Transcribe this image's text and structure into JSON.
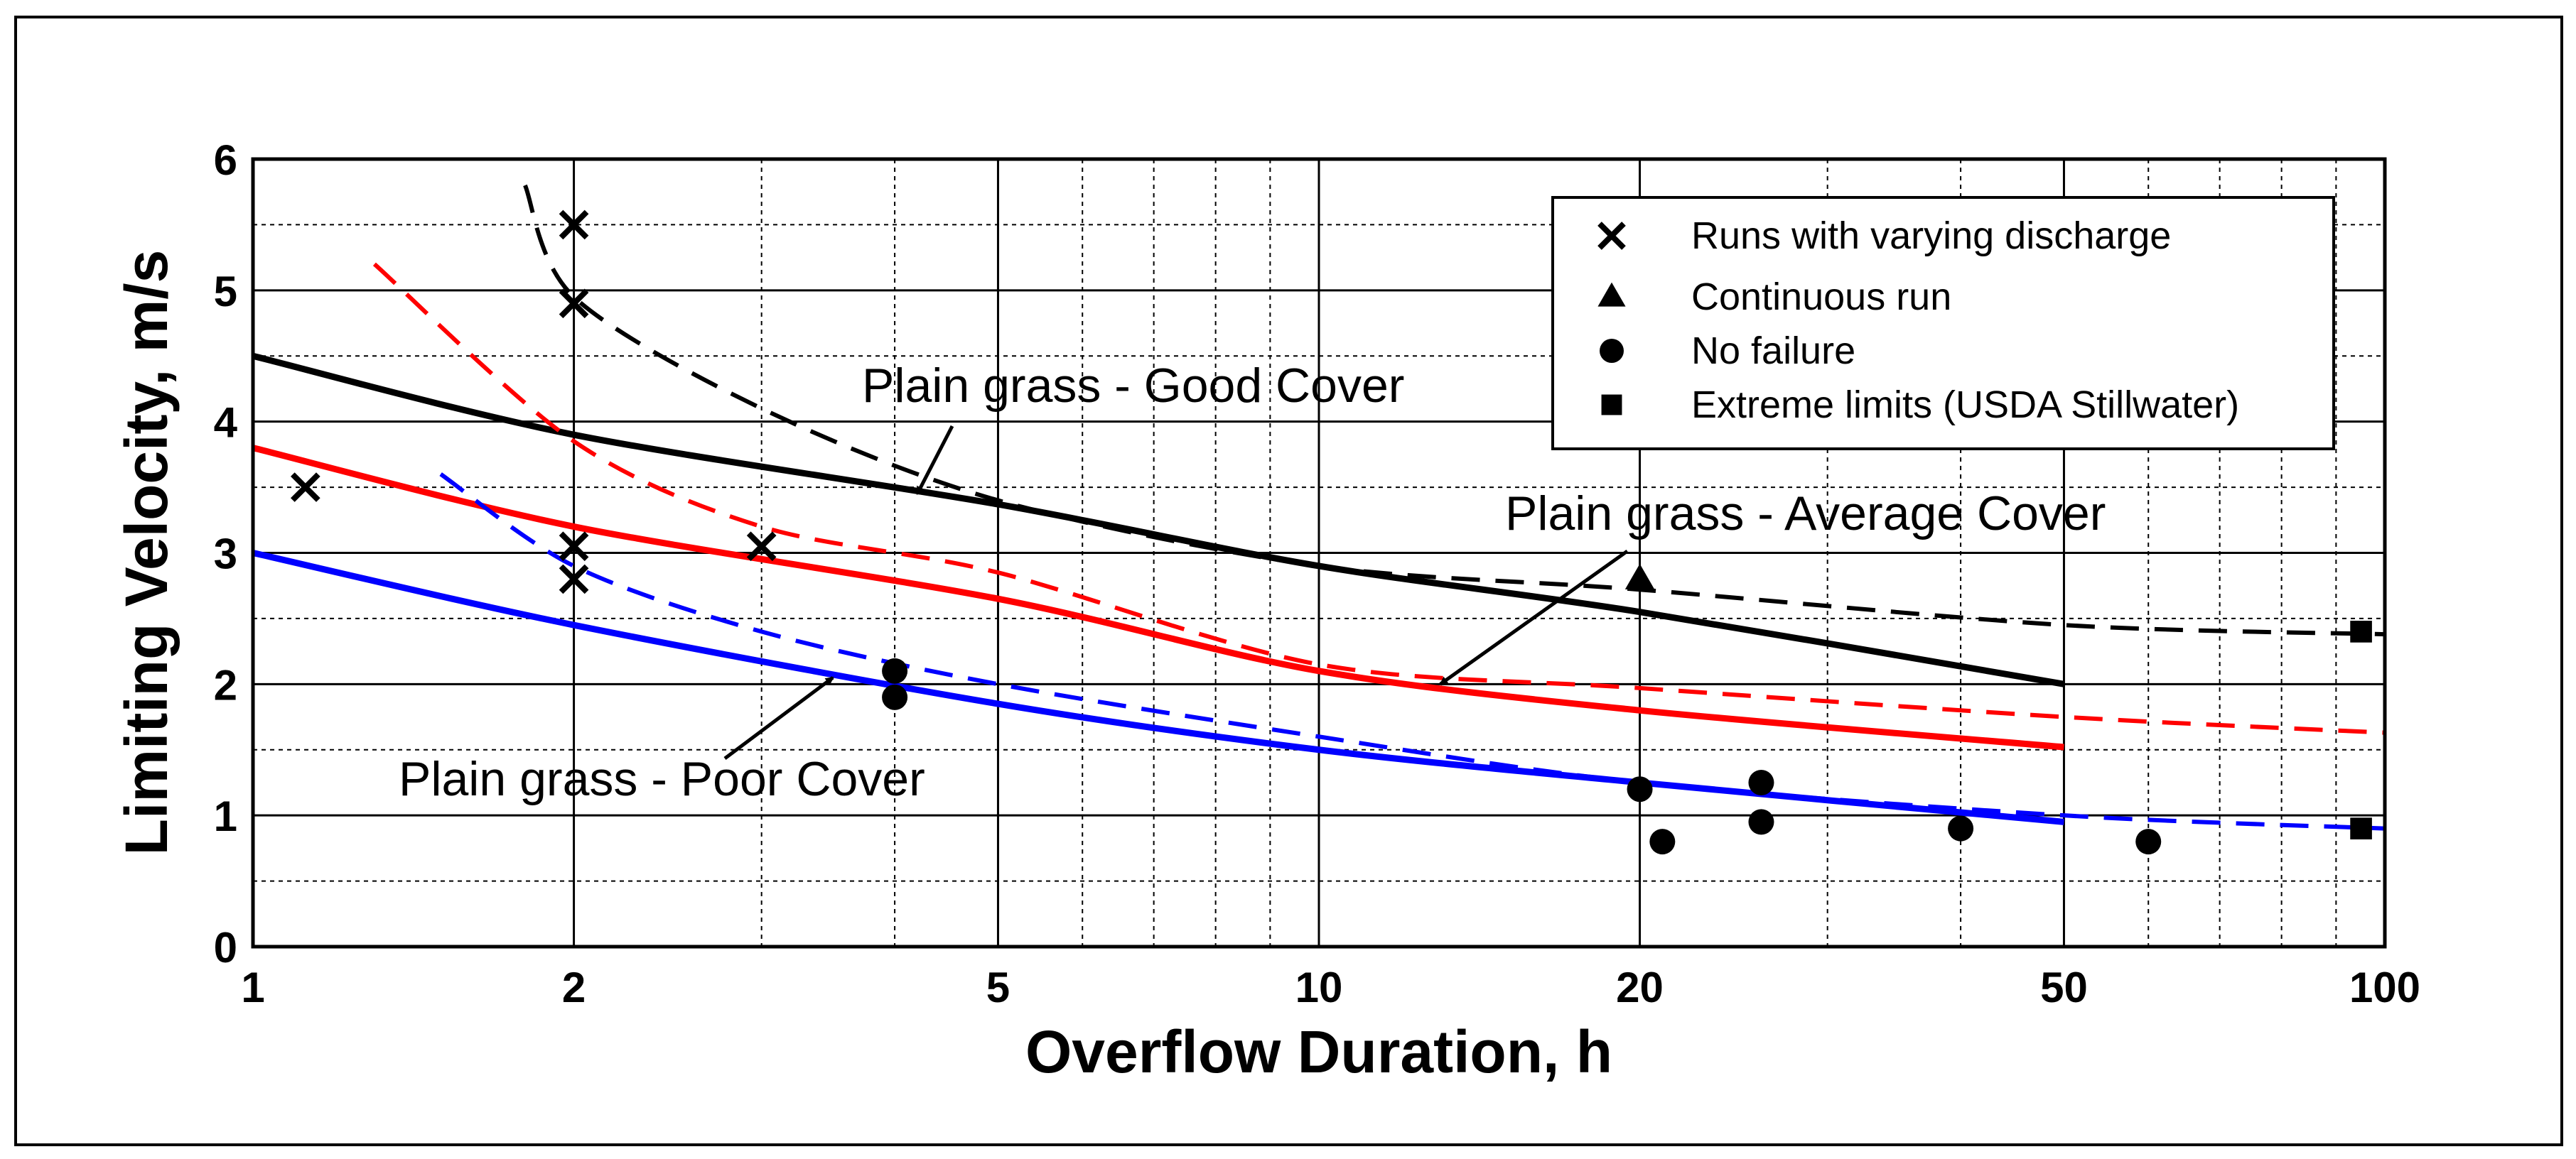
{
  "chart_data": {
    "type": "line",
    "title": "",
    "xlabel": "Overflow Duration, h",
    "ylabel": "Limiting Velocity, m/s",
    "xscale": "log",
    "xlim": [
      1,
      100
    ],
    "ylim": [
      0,
      6
    ],
    "x_ticks": [
      1,
      2,
      5,
      10,
      20,
      50,
      100
    ],
    "x_tick_labels": [
      "1",
      "2",
      "5",
      "10",
      "20",
      "50",
      "100"
    ],
    "y_ticks": [
      0,
      1,
      2,
      3,
      4,
      5,
      6
    ],
    "y_tick_labels": [
      "0",
      "1",
      "2",
      "3",
      "4",
      "5",
      "6"
    ],
    "grid": true,
    "series": [
      {
        "name": "Good cover - solid",
        "color": "#000000",
        "style": "solid",
        "x": [
          1,
          2,
          5,
          10,
          20,
          50
        ],
        "y": [
          4.5,
          3.9,
          3.37,
          2.9,
          2.55,
          2.0
        ]
      },
      {
        "name": "Good cover - dashed",
        "color": "#000000",
        "style": "dashed",
        "x": [
          1.8,
          2,
          3,
          5,
          10,
          20,
          50,
          100
        ],
        "y": [
          5.8,
          4.95,
          4.1,
          3.4,
          2.9,
          2.72,
          2.45,
          2.38
        ]
      },
      {
        "name": "Average cover - solid",
        "color": "#ff0000",
        "style": "solid",
        "x": [
          1,
          2,
          5,
          10,
          20,
          50
        ],
        "y": [
          3.8,
          3.2,
          2.65,
          2.1,
          1.8,
          1.52
        ]
      },
      {
        "name": "Average cover - dashed",
        "color": "#ff0000",
        "style": "dashed",
        "x": [
          1.3,
          2,
          3,
          5,
          10,
          20,
          50,
          100
        ],
        "y": [
          5.2,
          3.85,
          3.2,
          2.85,
          2.15,
          1.97,
          1.75,
          1.63
        ]
      },
      {
        "name": "Poor cover - solid",
        "color": "#0000ff",
        "style": "solid",
        "x": [
          1,
          2,
          5,
          10,
          20,
          50
        ],
        "y": [
          3.0,
          2.45,
          1.85,
          1.5,
          1.25,
          0.95
        ]
      },
      {
        "name": "Poor cover - dashed",
        "color": "#0000ff",
        "style": "dashed",
        "x": [
          1.5,
          2,
          3,
          5,
          10,
          20,
          50,
          100
        ],
        "y": [
          3.6,
          2.9,
          2.4,
          2.0,
          1.6,
          1.25,
          1.0,
          0.9
        ]
      }
    ],
    "points": [
      {
        "marker": "x",
        "x": 1.12,
        "y": 3.5
      },
      {
        "marker": "x",
        "x": 2.0,
        "y": 5.5
      },
      {
        "marker": "x",
        "x": 2.0,
        "y": 4.9
      },
      {
        "marker": "x",
        "x": 2.0,
        "y": 3.05
      },
      {
        "marker": "x",
        "x": 2.0,
        "y": 2.8
      },
      {
        "marker": "x",
        "x": 3.0,
        "y": 3.05
      },
      {
        "marker": "triangle",
        "x": 20,
        "y": 2.8
      },
      {
        "marker": "circle",
        "x": 4.0,
        "y": 2.1
      },
      {
        "marker": "circle",
        "x": 4.0,
        "y": 1.9
      },
      {
        "marker": "circle",
        "x": 20,
        "y": 1.2
      },
      {
        "marker": "circle",
        "x": 21,
        "y": 0.8
      },
      {
        "marker": "circle",
        "x": 26,
        "y": 1.25
      },
      {
        "marker": "circle",
        "x": 26,
        "y": 0.95
      },
      {
        "marker": "circle",
        "x": 40,
        "y": 0.9
      },
      {
        "marker": "circle",
        "x": 60,
        "y": 0.8
      },
      {
        "marker": "square",
        "x": 95,
        "y": 2.4
      },
      {
        "marker": "square",
        "x": 95,
        "y": 0.9
      }
    ],
    "annotations": [
      {
        "text": "Plain grass - Good Cover",
        "arrow_to": {
          "x": 4.2,
          "y": 3.45
        }
      },
      {
        "text": "Plain grass - Average Cover",
        "arrow_to": {
          "x": 13,
          "y": 2.0
        }
      },
      {
        "text": "Plain grass - Poor Cover",
        "arrow_to": {
          "x": 3.5,
          "y": 2.05
        }
      }
    ],
    "legend": {
      "position": "top-right",
      "entries": [
        {
          "marker": "x",
          "label": "Runs with varying discharge"
        },
        {
          "marker": "triangle",
          "label": "Continuous run"
        },
        {
          "marker": "circle",
          "label": "No failure"
        },
        {
          "marker": "square",
          "label": "Extreme limits (USDA Stillwater)"
        }
      ]
    }
  }
}
